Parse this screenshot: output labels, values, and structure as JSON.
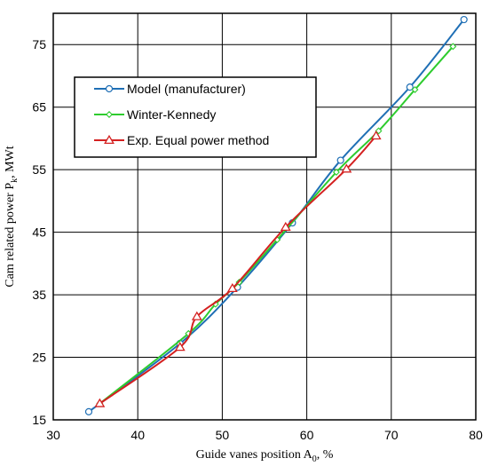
{
  "chart_data": {
    "type": "line",
    "xlabel": "Guide vanes position A",
    "xlabel_sub": "0",
    "xlabel_suffix": ", %",
    "ylabel": "Cam related power P",
    "ylabel_sub": "k",
    "ylabel_suffix": ", MWt",
    "xlim": [
      30,
      80
    ],
    "ylim": [
      15,
      80
    ],
    "xticks": [
      30,
      40,
      50,
      60,
      70,
      80
    ],
    "yticks": [
      15,
      25,
      35,
      45,
      55,
      65,
      75
    ],
    "grid": true,
    "legend_position": "top-left",
    "series": [
      {
        "name": "Model (manufacturer)",
        "color": "#1f6fb5",
        "marker": "circle",
        "points": [
          [
            34.2,
            16.3
          ],
          [
            45.0,
            27.2
          ],
          [
            51.8,
            36.2
          ],
          [
            58.3,
            46.5
          ],
          [
            64.0,
            56.5
          ],
          [
            72.2,
            68.2
          ],
          [
            78.6,
            79.0
          ]
        ]
      },
      {
        "name": "Winter-Kennedy",
        "color": "#2ecc2e",
        "marker": "diamond",
        "points": [
          [
            35.5,
            17.6
          ],
          [
            46.0,
            28.8
          ],
          [
            49.2,
            33.5
          ],
          [
            52.0,
            37.0
          ],
          [
            56.5,
            43.8
          ],
          [
            63.5,
            54.6
          ],
          [
            68.5,
            61.2
          ],
          [
            72.8,
            67.8
          ],
          [
            77.3,
            74.7
          ]
        ]
      },
      {
        "name": "Exp. Equal power method",
        "color": "#d42020",
        "marker": "triangle",
        "points": [
          [
            35.5,
            17.6
          ],
          [
            45.0,
            26.6
          ],
          [
            47.0,
            31.5
          ],
          [
            51.2,
            36.0
          ],
          [
            57.5,
            45.8
          ],
          [
            64.7,
            55.1
          ],
          [
            68.2,
            60.4
          ]
        ]
      }
    ]
  }
}
